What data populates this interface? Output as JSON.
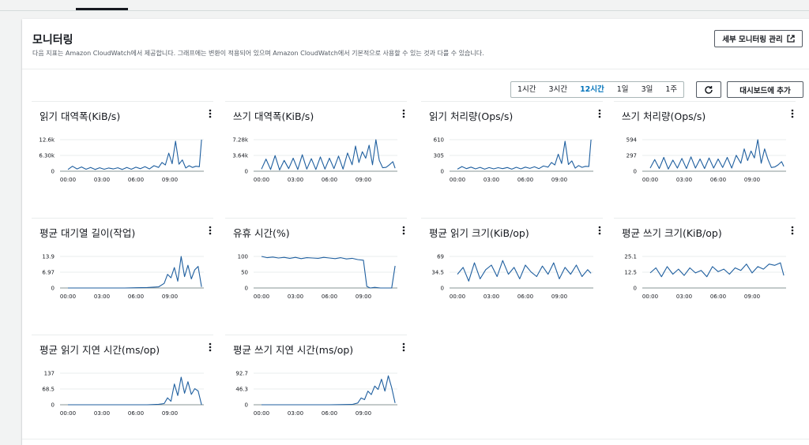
{
  "header": {
    "title": "모니터링",
    "description": "다음 지표는 Amazon CloudWatch에서 제공합니다. 그래프에는 변환이 적용되어 있으며 Amazon CloudWatch에서 기본적으로 사용할 수 있는 것과 다를 수 있습니다.",
    "detail_button": "세부 모니터링 관리"
  },
  "toolbar": {
    "ranges": [
      "1시간",
      "3시간",
      "12시간",
      "1일",
      "3일",
      "1주"
    ],
    "selected_range": "12시간",
    "refresh_icon": "refresh-icon",
    "add_to_dashboard": "대시보드에 추가"
  },
  "colors": {
    "series": "#1f5f9f",
    "accent": "#0073bb"
  },
  "charts": [
    {
      "title": "읽기 대역폭(KiB/s)",
      "yticks": [
        "12.6k",
        "6.30k",
        "0"
      ],
      "ymax": 12600,
      "xticks": [
        "00:00",
        "03:00",
        "06:00",
        "09:00"
      ]
    },
    {
      "title": "쓰기 대역폭(KiB/s)",
      "yticks": [
        "7.28k",
        "3.64k",
        "0"
      ],
      "ymax": 7280,
      "xticks": [
        "00:00",
        "03:00",
        "06:00",
        "09:00"
      ]
    },
    {
      "title": "읽기 처리량(Ops/s)",
      "yticks": [
        "610",
        "305",
        "0"
      ],
      "ymax": 610,
      "xticks": [
        "00:00",
        "03:00",
        "06:00",
        "09:00"
      ]
    },
    {
      "title": "쓰기 처리량(Ops/s)",
      "yticks": [
        "594",
        "297",
        "0"
      ],
      "ymax": 594,
      "xticks": [
        "00:00",
        "03:00",
        "06:00",
        "09:00"
      ]
    },
    {
      "title": "평균 대기열 길이(작업)",
      "yticks": [
        "13.9",
        "6.97",
        "0"
      ],
      "ymax": 13.9,
      "xticks": [
        "00:00",
        "03:00",
        "06:00",
        "09:00"
      ]
    },
    {
      "title": "유휴 시간(%)",
      "yticks": [
        "100",
        "50",
        "0"
      ],
      "ymax": 100,
      "xticks": [
        "00:00",
        "03:00",
        "06:00",
        "09:00"
      ]
    },
    {
      "title": "평균 읽기 크기(KiB/op)",
      "yticks": [
        "69",
        "34.5",
        "0"
      ],
      "ymax": 69,
      "xticks": [
        "00:00",
        "03:00",
        "06:00",
        "09:00"
      ]
    },
    {
      "title": "평균 쓰기 크기(KiB/op)",
      "yticks": [
        "25.1",
        "12.5",
        "0"
      ],
      "ymax": 25.1,
      "xticks": [
        "00:00",
        "03:00",
        "06:00",
        "09:00"
      ]
    },
    {
      "title": "평균 읽기 지연 시간(ms/op)",
      "yticks": [
        "137",
        "68.5",
        "0"
      ],
      "ymax": 137,
      "xticks": [
        "00:00",
        "03:00",
        "06:00",
        "09:00"
      ]
    },
    {
      "title": "평균 쓰기 지연 시간(ms/op)",
      "yticks": [
        "92.7",
        "46.3",
        "0"
      ],
      "ymax": 92.7,
      "xticks": [
        "00:00",
        "03:00",
        "06:00",
        "09:00"
      ]
    }
  ],
  "chart_data": [
    {
      "type": "line",
      "title": "읽기 대역폭(KiB/s)",
      "x_hours": [
        0,
        0.4,
        0.8,
        1.2,
        1.6,
        2,
        2.4,
        2.8,
        3.2,
        3.6,
        4,
        4.4,
        4.8,
        5.2,
        5.6,
        6,
        6.4,
        6.8,
        7.2,
        7.6,
        8,
        8.3,
        8.6,
        8.9,
        9.2,
        9.5,
        9.8,
        10.1,
        10.4,
        10.7,
        11,
        11.3,
        11.6,
        11.8
      ],
      "values": [
        700,
        2000,
        900,
        1700,
        800,
        1500,
        700,
        1400,
        800,
        1300,
        900,
        1400,
        700,
        1500,
        800,
        1600,
        1000,
        1800,
        900,
        2200,
        1500,
        3500,
        2500,
        7200,
        3000,
        12000,
        2800,
        4500,
        1300,
        2200,
        1500,
        2000,
        1800,
        12600
      ],
      "ylim": [
        0,
        12600
      ]
    },
    {
      "title": "쓰기 대역폭(KiB/s)",
      "type": "line",
      "x_hours": [
        0,
        0.4,
        0.8,
        1.2,
        1.6,
        2,
        2.4,
        2.8,
        3.2,
        3.6,
        4,
        4.4,
        4.8,
        5.2,
        5.6,
        6,
        6.4,
        6.8,
        7.2,
        7.6,
        8,
        8.3,
        8.6,
        8.9,
        9.2,
        9.5,
        9.8,
        10.1,
        10.4,
        10.7,
        11,
        11.3,
        11.6,
        11.8
      ],
      "values": [
        500,
        2800,
        400,
        3600,
        300,
        2500,
        600,
        3000,
        400,
        3800,
        500,
        2900,
        400,
        3300,
        500,
        3000,
        600,
        3500,
        500,
        4200,
        1500,
        5800,
        2000,
        4500,
        3000,
        6000,
        1500,
        7280,
        2500,
        800,
        900,
        1500,
        2200,
        700
      ],
      "ylim": [
        0,
        7280
      ]
    },
    {
      "title": "읽기 처리량(Ops/s)",
      "type": "line",
      "x_hours": [
        0,
        0.4,
        0.8,
        1.2,
        1.6,
        2,
        2.4,
        2.8,
        3.2,
        3.6,
        4,
        4.4,
        4.8,
        5.2,
        5.6,
        6,
        6.4,
        6.8,
        7.2,
        7.6,
        8,
        8.3,
        8.6,
        8.9,
        9.2,
        9.5,
        9.8,
        10.1,
        10.4,
        10.7,
        11,
        11.3,
        11.6,
        11.8
      ],
      "values": [
        40,
        90,
        50,
        80,
        45,
        75,
        40,
        70,
        45,
        68,
        50,
        72,
        40,
        76,
        45,
        80,
        55,
        85,
        50,
        100,
        80,
        170,
        120,
        330,
        150,
        580,
        130,
        200,
        60,
        110,
        75,
        95,
        90,
        610
      ],
      "ylim": [
        0,
        610
      ]
    },
    {
      "title": "쓰기 처리량(Ops/s)",
      "type": "line",
      "x_hours": [
        0,
        0.4,
        0.8,
        1.2,
        1.6,
        2,
        2.4,
        2.8,
        3.2,
        3.6,
        4,
        4.4,
        4.8,
        5.2,
        5.6,
        6,
        6.4,
        6.8,
        7.2,
        7.6,
        8,
        8.3,
        8.6,
        8.9,
        9.2,
        9.5,
        9.8,
        10.1,
        10.4,
        10.7,
        11,
        11.3,
        11.6,
        11.8
      ],
      "values": [
        60,
        220,
        50,
        260,
        40,
        210,
        60,
        240,
        50,
        270,
        60,
        230,
        50,
        250,
        60,
        230,
        70,
        260,
        60,
        300,
        150,
        420,
        200,
        380,
        250,
        594,
        150,
        420,
        220,
        70,
        80,
        120,
        180,
        90
      ],
      "ylim": [
        0,
        594
      ]
    },
    {
      "title": "평균 대기열 길이(작업)",
      "type": "line",
      "x_hours": [
        0,
        1,
        2,
        3,
        4,
        5,
        6,
        7,
        8,
        8.5,
        8.8,
        9.1,
        9.4,
        9.7,
        10,
        10.3,
        10.6,
        10.9,
        11.2,
        11.5,
        11.8
      ],
      "values": [
        0,
        0,
        0,
        0,
        0,
        0,
        0.1,
        0.2,
        0.5,
        2,
        6,
        4.5,
        9,
        3,
        13.9,
        5,
        10,
        4,
        8,
        9.5,
        0.5
      ],
      "ylim": [
        0,
        13.9
      ]
    },
    {
      "title": "유휴 시간(%)",
      "type": "line",
      "x_hours": [
        0,
        0.5,
        1,
        1.5,
        2,
        2.5,
        3,
        3.5,
        4,
        4.5,
        5,
        5.5,
        6,
        6.5,
        7,
        7.5,
        8,
        8.5,
        9,
        9.3,
        9.6,
        10,
        10.5,
        11,
        11.5,
        11.8
      ],
      "values": [
        100,
        96,
        98,
        95,
        97,
        94,
        97,
        93,
        96,
        95,
        94,
        97,
        95,
        93,
        96,
        92,
        94,
        90,
        88,
        5,
        0,
        2,
        0,
        0,
        0,
        70
      ],
      "ylim": [
        0,
        100
      ]
    },
    {
      "title": "평균 읽기 크기(KiB/op)",
      "type": "line",
      "x_hours": [
        0,
        0.5,
        1,
        1.5,
        2,
        2.5,
        3,
        3.5,
        4,
        4.5,
        5,
        5.5,
        6,
        6.5,
        7,
        7.5,
        8,
        8.5,
        9,
        9.5,
        10,
        10.5,
        11,
        11.5,
        11.8
      ],
      "values": [
        30,
        45,
        15,
        55,
        20,
        40,
        50,
        25,
        60,
        30,
        45,
        20,
        50,
        35,
        25,
        48,
        30,
        55,
        20,
        45,
        30,
        50,
        25,
        40,
        32
      ],
      "ylim": [
        0,
        69
      ]
    },
    {
      "title": "평균 쓰기 크기(KiB/op)",
      "type": "line",
      "x_hours": [
        0,
        0.5,
        1,
        1.5,
        2,
        2.5,
        3,
        3.5,
        4,
        4.5,
        5,
        5.5,
        6,
        6.5,
        7,
        7.5,
        8,
        8.5,
        9,
        9.5,
        10,
        10.5,
        11,
        11.5,
        11.8
      ],
      "values": [
        12,
        16,
        9,
        17,
        11,
        15,
        10,
        16,
        12,
        14,
        9,
        17,
        13,
        15,
        11,
        16,
        14,
        19,
        12,
        17,
        15,
        19,
        18,
        20,
        10
      ],
      "ylim": [
        0,
        25.1
      ]
    },
    {
      "title": "평균 읽기 지연 시간(ms/op)",
      "type": "line",
      "x_hours": [
        0,
        1,
        2,
        3,
        4,
        5,
        6,
        7,
        8,
        8.5,
        8.8,
        9.1,
        9.4,
        9.7,
        10,
        10.3,
        10.6,
        10.9,
        11.2,
        11.5,
        11.8
      ],
      "values": [
        0,
        0,
        0,
        0,
        0,
        0,
        0,
        0,
        2,
        5,
        30,
        15,
        90,
        40,
        120,
        50,
        100,
        45,
        70,
        60,
        0
      ],
      "ylim": [
        0,
        137
      ]
    },
    {
      "title": "평균 쓰기 지연 시간(ms/op)",
      "type": "line",
      "x_hours": [
        0,
        1,
        2,
        3,
        4,
        5,
        6,
        7,
        8,
        8.5,
        8.8,
        9.1,
        9.4,
        9.7,
        10,
        10.3,
        10.6,
        10.9,
        11.2,
        11.5,
        11.8
      ],
      "values": [
        0,
        0,
        0,
        0,
        0,
        0,
        0,
        0.5,
        1,
        5,
        20,
        15,
        40,
        30,
        55,
        45,
        75,
        40,
        85,
        50,
        5
      ],
      "ylim": [
        0,
        92.7
      ]
    }
  ]
}
